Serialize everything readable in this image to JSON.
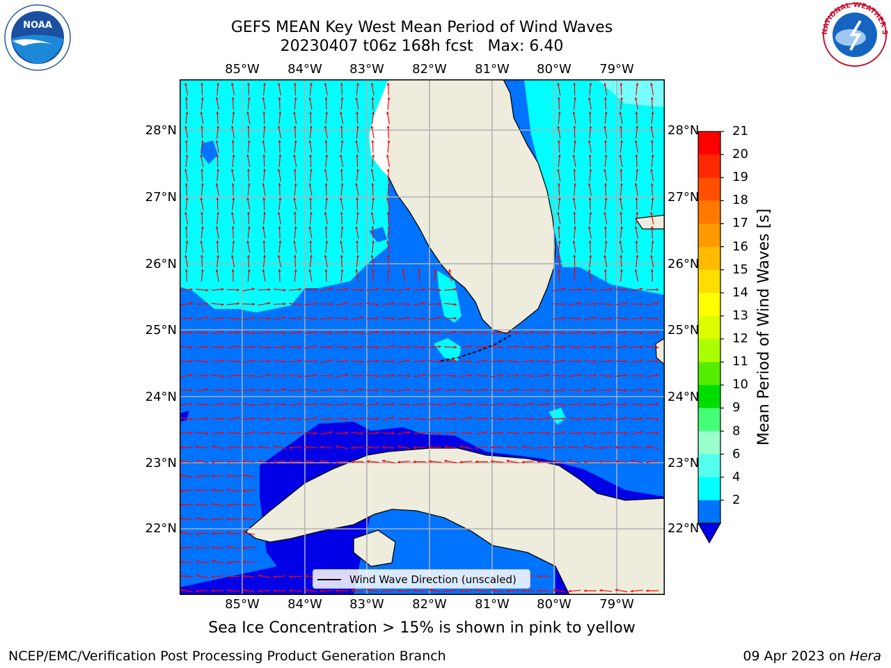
{
  "title": {
    "line1": "GEFS MEAN Key West Mean Period of Wind Waves",
    "line2": "20230407 t06z 168h fcst   Max: 6.40"
  },
  "logos": {
    "left": "NOAA",
    "right": "NATIONAL WEATHER SERVICE"
  },
  "map": {
    "lon_labels": [
      "85°W",
      "84°W",
      "83°W",
      "82°W",
      "81°W",
      "80°W",
      "79°W"
    ],
    "lat_labels": [
      "28°N",
      "27°N",
      "26°N",
      "25°N",
      "24°N",
      "23°N",
      "22°N"
    ],
    "legend": "Wind Wave Direction (unscaled)",
    "colors": {
      "land": "#eeecdc",
      "band_2_4": "#0073ff",
      "band_4_6": "#00ffff",
      "under_2": "#0000e6",
      "arrow": "#ff0000"
    }
  },
  "colorbar": {
    "title": "Mean Period of Wind Waves [s]",
    "ticks": [
      "21",
      "20",
      "19",
      "18",
      "17",
      "16",
      "15",
      "14",
      "13",
      "12",
      "11",
      "10",
      "9",
      "8",
      "6",
      "4",
      "2"
    ],
    "colors": [
      "#ff0000",
      "#ff2800",
      "#ff5000",
      "#ff7800",
      "#ff9900",
      "#ffbb00",
      "#ffdd00",
      "#ffff00",
      "#ddff00",
      "#aaff00",
      "#55ee00",
      "#00dd00",
      "#44ff77",
      "#99ffcc",
      "#55ffee",
      "#00ffff",
      "#0073ff"
    ],
    "extend_color": "#0000e6"
  },
  "subtitle": "Sea Ice Concentration > 15% is shown in pink to yellow",
  "footer": {
    "left": "NCEP/EMC/Verification Post Processing Product Generation Branch",
    "right_date": "09 Apr 2023 on ",
    "right_host": "Hera"
  }
}
